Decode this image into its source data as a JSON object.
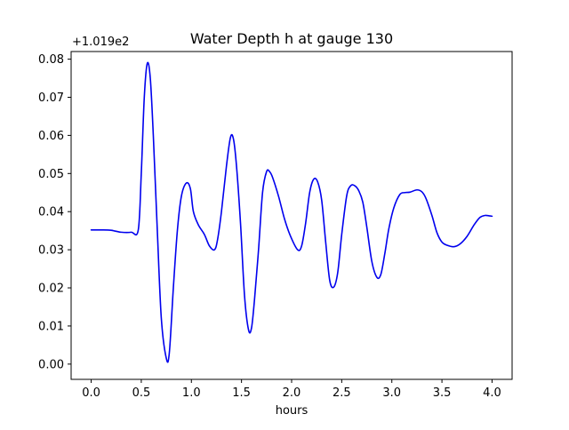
{
  "chart_data": {
    "type": "line",
    "title": "Water Depth h at gauge 130",
    "xlabel": "hours",
    "ylabel": "",
    "offset_text": "+1.019e2",
    "xlim": [
      -0.2,
      4.2
    ],
    "ylim": [
      -0.004,
      0.082
    ],
    "xticks": [
      0.0,
      0.5,
      1.0,
      1.5,
      2.0,
      2.5,
      3.0,
      3.5,
      4.0
    ],
    "xtick_labels": [
      "0.0",
      "0.5",
      "1.0",
      "1.5",
      "2.0",
      "2.5",
      "3.0",
      "3.5",
      "4.0"
    ],
    "yticks": [
      0.0,
      0.01,
      0.02,
      0.03,
      0.04,
      0.05,
      0.06,
      0.07,
      0.08
    ],
    "ytick_labels": [
      "0.00",
      "0.01",
      "0.02",
      "0.03",
      "0.04",
      "0.05",
      "0.06",
      "0.07",
      "0.08"
    ],
    "grid": false,
    "series": [
      {
        "color": "#0000ee",
        "x": [
          0.0,
          0.1,
          0.2,
          0.3,
          0.4,
          0.47,
          0.5,
          0.53,
          0.56,
          0.59,
          0.62,
          0.66,
          0.7,
          0.75,
          0.78,
          0.82,
          0.86,
          0.9,
          0.95,
          0.99,
          1.02,
          1.07,
          1.13,
          1.18,
          1.23,
          1.26,
          1.3,
          1.35,
          1.39,
          1.42,
          1.45,
          1.49,
          1.53,
          1.57,
          1.6,
          1.63,
          1.67,
          1.71,
          1.75,
          1.78,
          1.81,
          1.87,
          1.93,
          1.99,
          2.06,
          2.1,
          2.14,
          2.18,
          2.22,
          2.26,
          2.3,
          2.34,
          2.38,
          2.42,
          2.46,
          2.5,
          2.55,
          2.59,
          2.63,
          2.67,
          2.71,
          2.75,
          2.8,
          2.85,
          2.89,
          2.93,
          2.97,
          3.02,
          3.08,
          3.13,
          3.18,
          3.25,
          3.3,
          3.34,
          3.4,
          3.45,
          3.5,
          3.55,
          3.62,
          3.68,
          3.75,
          3.82,
          3.88,
          3.93,
          3.97,
          4.0
        ],
        "y": [
          0.0352,
          0.0352,
          0.0351,
          0.0346,
          0.0346,
          0.0352,
          0.05,
          0.07,
          0.0789,
          0.075,
          0.06,
          0.035,
          0.012,
          0.0015,
          0.003,
          0.02,
          0.035,
          0.044,
          0.0475,
          0.046,
          0.04,
          0.0365,
          0.034,
          0.031,
          0.03,
          0.0325,
          0.04,
          0.052,
          0.0595,
          0.059,
          0.052,
          0.037,
          0.018,
          0.009,
          0.0095,
          0.017,
          0.03,
          0.045,
          0.0505,
          0.0505,
          0.049,
          0.044,
          0.038,
          0.0335,
          0.03,
          0.031,
          0.037,
          0.045,
          0.0485,
          0.0478,
          0.043,
          0.032,
          0.022,
          0.0202,
          0.024,
          0.034,
          0.0442,
          0.0468,
          0.0468,
          0.0455,
          0.0425,
          0.036,
          0.027,
          0.0228,
          0.0235,
          0.029,
          0.0355,
          0.041,
          0.0445,
          0.045,
          0.0451,
          0.0457,
          0.0452,
          0.0435,
          0.039,
          0.0345,
          0.032,
          0.0312,
          0.0308,
          0.0315,
          0.0335,
          0.0365,
          0.0385,
          0.039,
          0.0389,
          0.0388
        ]
      }
    ]
  }
}
